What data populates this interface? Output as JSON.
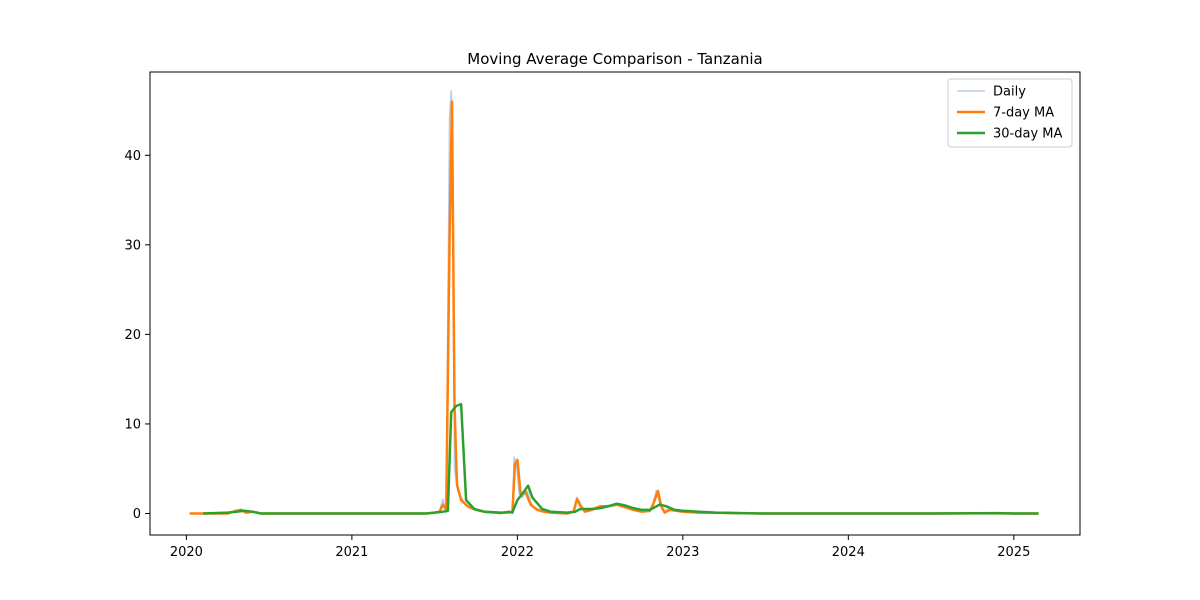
{
  "chart_data": {
    "type": "line",
    "title": "Moving Average Comparison - Tanzania",
    "xlabel": "",
    "ylabel": "",
    "xlim": [
      2019.78,
      2025.4
    ],
    "ylim": [
      -2.4,
      49.3
    ],
    "x_ticks": [
      2020,
      2021,
      2022,
      2023,
      2024,
      2025
    ],
    "x_tick_labels": [
      "2020",
      "2021",
      "2022",
      "2023",
      "2024",
      "2025"
    ],
    "y_ticks": [
      0,
      10,
      20,
      30,
      40
    ],
    "y_tick_labels": [
      "0",
      "10",
      "20",
      "30",
      "40"
    ],
    "grid": false,
    "legend_position": "top-right",
    "series": [
      {
        "name": "Daily",
        "color": "#aec7e8",
        "width": 1.5,
        "opacity": 0.9,
        "points": [
          [
            2020.02,
            0
          ],
          [
            2020.1,
            0
          ],
          [
            2020.25,
            0
          ],
          [
            2020.3,
            0.3
          ],
          [
            2020.33,
            0.5
          ],
          [
            2020.36,
            0.1
          ],
          [
            2020.4,
            0.2
          ],
          [
            2020.45,
            0
          ],
          [
            2021.0,
            0
          ],
          [
            2021.45,
            0
          ],
          [
            2021.5,
            0.1
          ],
          [
            2021.53,
            0.3
          ],
          [
            2021.55,
            1.6
          ],
          [
            2021.57,
            0.1
          ],
          [
            2021.59,
            44
          ],
          [
            2021.6,
            47.2
          ],
          [
            2021.61,
            40
          ],
          [
            2021.62,
            5
          ],
          [
            2021.64,
            2.5
          ],
          [
            2021.68,
            1.2
          ],
          [
            2021.72,
            0.5
          ],
          [
            2021.8,
            0.2
          ],
          [
            2021.9,
            0.05
          ],
          [
            2021.95,
            0.3
          ],
          [
            2021.97,
            0
          ],
          [
            2021.98,
            6.3
          ],
          [
            2021.995,
            5.5
          ],
          [
            2022.01,
            2.3
          ],
          [
            2022.03,
            1.8
          ],
          [
            2022.06,
            2.5
          ],
          [
            2022.09,
            0.8
          ],
          [
            2022.15,
            0.3
          ],
          [
            2022.2,
            0.1
          ],
          [
            2022.3,
            0
          ],
          [
            2022.34,
            0.2
          ],
          [
            2022.36,
            1.8
          ],
          [
            2022.38,
            1.2
          ],
          [
            2022.4,
            0.2
          ],
          [
            2022.45,
            0.5
          ],
          [
            2022.5,
            0.8
          ],
          [
            2022.55,
            0.9
          ],
          [
            2022.6,
            1.1
          ],
          [
            2022.65,
            0.8
          ],
          [
            2022.7,
            0.4
          ],
          [
            2022.75,
            0.3
          ],
          [
            2022.8,
            0.2
          ],
          [
            2022.82,
            1.2
          ],
          [
            2022.84,
            2.6
          ],
          [
            2022.86,
            1.1
          ],
          [
            2022.88,
            0.3
          ],
          [
            2022.92,
            0.5
          ],
          [
            2022.96,
            0.3
          ],
          [
            2023.0,
            0.2
          ],
          [
            2023.1,
            0.1
          ],
          [
            2023.2,
            0.1
          ],
          [
            2023.3,
            0.05
          ],
          [
            2023.5,
            0
          ],
          [
            2024.0,
            0
          ],
          [
            2024.5,
            0
          ],
          [
            2024.9,
            0.05
          ],
          [
            2025.0,
            0
          ],
          [
            2025.15,
            0
          ]
        ]
      },
      {
        "name": "7-day MA",
        "color": "#ff7f0e",
        "width": 2.5,
        "opacity": 1,
        "points": [
          [
            2020.02,
            0
          ],
          [
            2020.1,
            0
          ],
          [
            2020.25,
            0
          ],
          [
            2020.3,
            0.3
          ],
          [
            2020.33,
            0.4
          ],
          [
            2020.36,
            0.1
          ],
          [
            2020.4,
            0.2
          ],
          [
            2020.45,
            0
          ],
          [
            2021.0,
            0
          ],
          [
            2021.45,
            0
          ],
          [
            2021.5,
            0.1
          ],
          [
            2021.53,
            0.2
          ],
          [
            2021.55,
            1.0
          ],
          [
            2021.57,
            0.4
          ],
          [
            2021.59,
            30
          ],
          [
            2021.605,
            46
          ],
          [
            2021.62,
            12
          ],
          [
            2021.635,
            3.2
          ],
          [
            2021.66,
            1.5
          ],
          [
            2021.7,
            0.8
          ],
          [
            2021.75,
            0.4
          ],
          [
            2021.8,
            0.2
          ],
          [
            2021.9,
            0.05
          ],
          [
            2021.95,
            0.2
          ],
          [
            2021.97,
            0.1
          ],
          [
            2021.985,
            5.5
          ],
          [
            2022.0,
            6.0
          ],
          [
            2022.02,
            2.1
          ],
          [
            2022.05,
            2.4
          ],
          [
            2022.08,
            1.0
          ],
          [
            2022.12,
            0.4
          ],
          [
            2022.16,
            0.2
          ],
          [
            2022.2,
            0.1
          ],
          [
            2022.3,
            0
          ],
          [
            2022.34,
            0.2
          ],
          [
            2022.36,
            1.6
          ],
          [
            2022.38,
            0.9
          ],
          [
            2022.41,
            0.2
          ],
          [
            2022.45,
            0.4
          ],
          [
            2022.5,
            0.8
          ],
          [
            2022.55,
            0.8
          ],
          [
            2022.6,
            1.0
          ],
          [
            2022.65,
            0.7
          ],
          [
            2022.7,
            0.4
          ],
          [
            2022.75,
            0.2
          ],
          [
            2022.8,
            0.3
          ],
          [
            2022.82,
            1.0
          ],
          [
            2022.85,
            2.5
          ],
          [
            2022.87,
            0.8
          ],
          [
            2022.89,
            0.1
          ],
          [
            2022.92,
            0.4
          ],
          [
            2022.96,
            0.3
          ],
          [
            2023.0,
            0.2
          ],
          [
            2023.1,
            0.1
          ],
          [
            2023.2,
            0.08
          ],
          [
            2023.3,
            0.05
          ],
          [
            2023.5,
            0
          ],
          [
            2024.0,
            0
          ],
          [
            2024.5,
            0
          ],
          [
            2024.9,
            0.03
          ],
          [
            2025.0,
            0
          ],
          [
            2025.15,
            0
          ]
        ]
      },
      {
        "name": "30-day MA",
        "color": "#2ca02c",
        "width": 2.5,
        "opacity": 1,
        "points": [
          [
            2020.1,
            0
          ],
          [
            2020.25,
            0.1
          ],
          [
            2020.3,
            0.2
          ],
          [
            2020.35,
            0.3
          ],
          [
            2020.4,
            0.2
          ],
          [
            2020.45,
            0
          ],
          [
            2021.0,
            0
          ],
          [
            2021.45,
            0
          ],
          [
            2021.5,
            0.1
          ],
          [
            2021.55,
            0.2
          ],
          [
            2021.58,
            0.3
          ],
          [
            2021.6,
            11.3
          ],
          [
            2021.63,
            12
          ],
          [
            2021.66,
            12.2
          ],
          [
            2021.69,
            1.5
          ],
          [
            2021.74,
            0.5
          ],
          [
            2021.8,
            0.2
          ],
          [
            2021.9,
            0.1
          ],
          [
            2021.97,
            0.15
          ],
          [
            2022.0,
            1.5
          ],
          [
            2022.03,
            2.2
          ],
          [
            2022.065,
            3.1
          ],
          [
            2022.09,
            1.8
          ],
          [
            2022.15,
            0.5
          ],
          [
            2022.2,
            0.2
          ],
          [
            2022.3,
            0.1
          ],
          [
            2022.35,
            0.2
          ],
          [
            2022.38,
            0.5
          ],
          [
            2022.45,
            0.5
          ],
          [
            2022.5,
            0.6
          ],
          [
            2022.55,
            0.8
          ],
          [
            2022.6,
            1.1
          ],
          [
            2022.65,
            0.9
          ],
          [
            2022.7,
            0.6
          ],
          [
            2022.75,
            0.4
          ],
          [
            2022.8,
            0.4
          ],
          [
            2022.86,
            1.0
          ],
          [
            2022.9,
            0.8
          ],
          [
            2022.95,
            0.4
          ],
          [
            2023.0,
            0.3
          ],
          [
            2023.1,
            0.2
          ],
          [
            2023.2,
            0.1
          ],
          [
            2023.5,
            0
          ],
          [
            2024.0,
            0
          ],
          [
            2024.5,
            0
          ],
          [
            2024.9,
            0.05
          ],
          [
            2025.0,
            0
          ],
          [
            2025.15,
            0
          ]
        ]
      }
    ]
  }
}
